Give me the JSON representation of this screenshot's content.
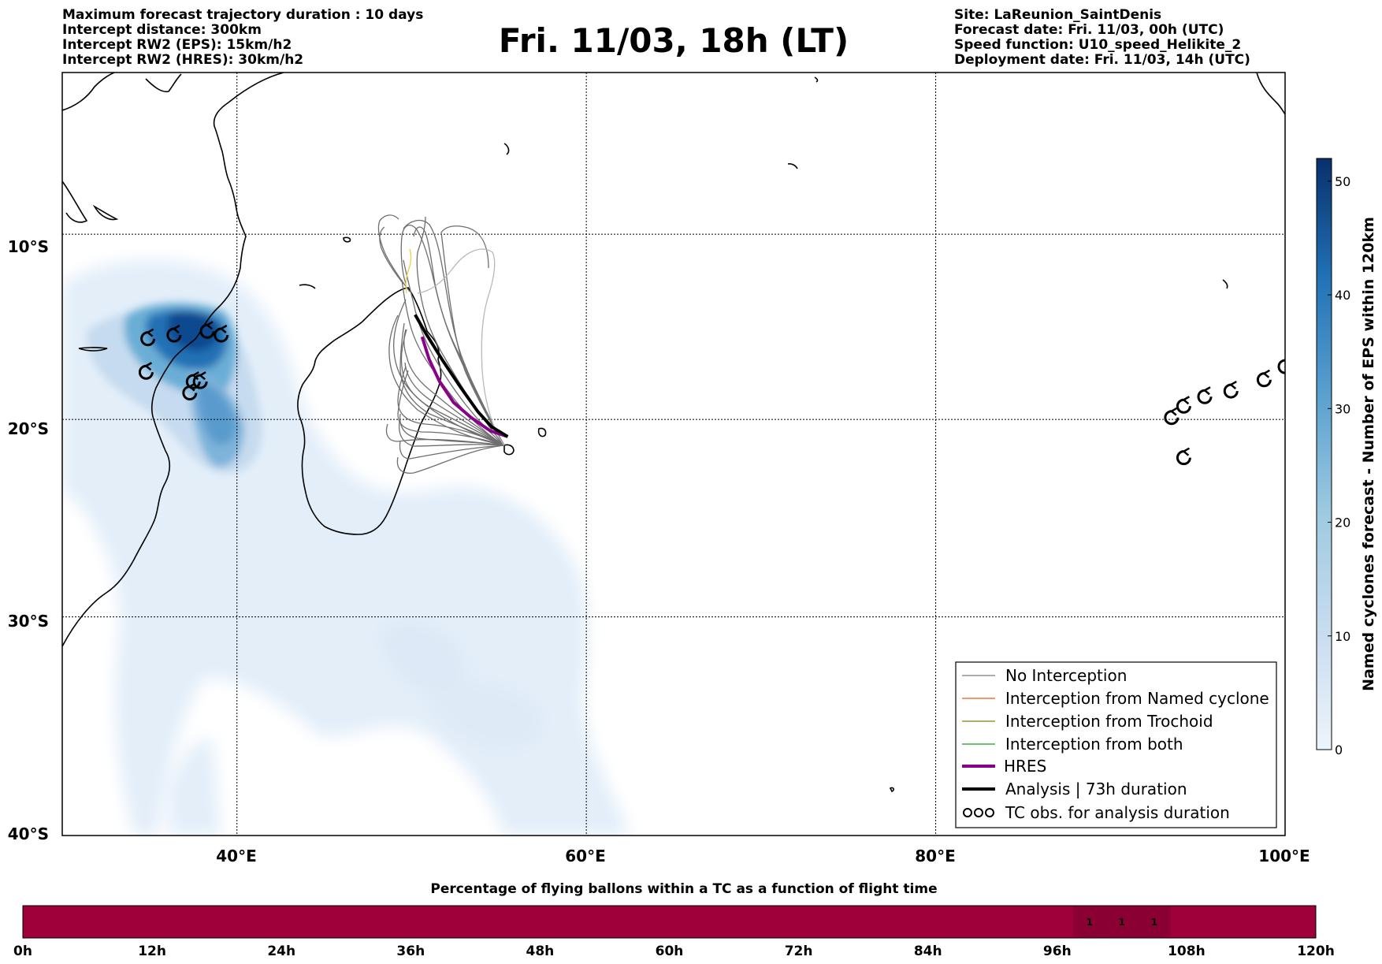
{
  "header": {
    "left": [
      "Maximum forecast trajectory duration : 10 days",
      "Intercept distance: 300km",
      "Intercept RW2 (EPS):  15km/h2",
      "Intercept RW2 (HRES): 30km/h2"
    ],
    "title": "Fri. 11/03, 18h (LT)",
    "right": [
      "Site: LaReunion_SaintDenis",
      "Forecast date: Fri. 11/03, 00h (UTC)",
      "Speed function: U10_speed_Helikite_2",
      "Deployment date: Fri. 11/03, 14h (UTC)"
    ]
  },
  "map": {
    "lon_range": [
      30,
      100
    ],
    "lat_range": [
      -40,
      -1
    ],
    "x_ticks": [
      {
        "value": 40,
        "label": "40°E"
      },
      {
        "value": 60,
        "label": "60°E"
      },
      {
        "value": 80,
        "label": "80°E"
      },
      {
        "value": 100,
        "label": "100°E"
      }
    ],
    "y_ticks": [
      {
        "value": -10,
        "label": "10°S"
      },
      {
        "value": -20,
        "label": "20°S"
      },
      {
        "value": -30,
        "label": "30°S"
      },
      {
        "value": -40,
        "label": "40°S"
      }
    ],
    "site": {
      "lon": 55.5,
      "lat": -20.9
    },
    "analysis_track": [
      [
        55.5,
        -20.9
      ],
      [
        54.6,
        -20.4
      ],
      [
        53.8,
        -19.6
      ],
      [
        52.8,
        -18.3
      ],
      [
        51.8,
        -16.9
      ],
      [
        50.8,
        -15.4
      ],
      [
        50.2,
        -14.4
      ]
    ],
    "hres_track": [
      [
        55.5,
        -20.9
      ],
      [
        54.5,
        -20.6
      ],
      [
        53.4,
        -19.9
      ],
      [
        52.4,
        -19.1
      ],
      [
        51.6,
        -18.0
      ],
      [
        51.0,
        -16.8
      ],
      [
        50.6,
        -15.6
      ]
    ],
    "tc_obs": [
      [
        34.9,
        -15.7
      ],
      [
        36.4,
        -15.5
      ],
      [
        38.3,
        -15.3
      ],
      [
        39.1,
        -15.5
      ],
      [
        34.8,
        -17.5
      ],
      [
        37.5,
        -18.0
      ],
      [
        37.9,
        -18.0
      ],
      [
        37.3,
        -18.6
      ],
      [
        93.5,
        -19.9
      ],
      [
        94.2,
        -19.3
      ],
      [
        95.4,
        -18.8
      ],
      [
        96.9,
        -18.5
      ],
      [
        98.8,
        -17.9
      ],
      [
        100.0,
        -17.2
      ],
      [
        94.2,
        -22.0
      ]
    ]
  },
  "legend": {
    "entries": [
      {
        "label": "No Interception",
        "color": "#7a7a7a"
      },
      {
        "label": "Interception from Named cyclone",
        "color": "#e85a1a"
      },
      {
        "label": "Interception from Trochoid",
        "color": "#8a7a10"
      },
      {
        "label": "Interception from both",
        "color": "#1a9a1a"
      },
      {
        "label": "HRES",
        "color": "#8b008b"
      },
      {
        "label": "Analysis | 73h duration",
        "color": "#000000"
      },
      {
        "label": "TC obs. for analysis duration",
        "color": "#000000"
      }
    ]
  },
  "colorbar": {
    "label": "Named cyclones forecast - Number of EPS within 120km",
    "range": [
      0,
      52
    ],
    "ticks": [
      "0",
      "10",
      "20",
      "30",
      "40",
      "50"
    ],
    "colors": [
      "#eef4fb",
      "#c8dcef",
      "#9ecae1",
      "#5aa0cf",
      "#2171b5",
      "#08306b"
    ]
  },
  "timeline": {
    "title": "Percentage of flying ballons within a TC as a function of flight time",
    "labels": [
      "0h",
      "12h",
      "24h",
      "36h",
      "48h",
      "60h",
      "72h",
      "84h",
      "96h",
      "108h",
      "120h"
    ],
    "bar_color": "#a0003a",
    "highlight_color": "#8b0033",
    "cells": [
      {
        "hour": 99,
        "value": "1"
      },
      {
        "hour": 102,
        "value": "1"
      },
      {
        "hour": 105,
        "value": "1"
      }
    ]
  }
}
